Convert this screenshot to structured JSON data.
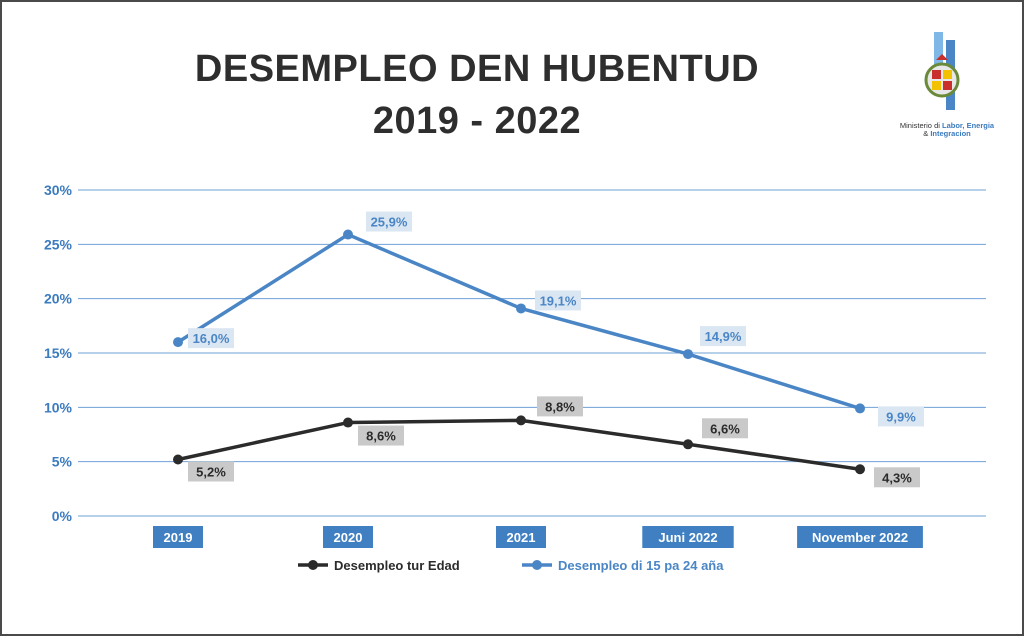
{
  "title_line1": "DESEMPLEO DEN HUBENTUD",
  "title_line2": "2019 - 2022",
  "logo": {
    "caption_line1": "Ministerio di",
    "caption_highlight1": "Labor, Energia",
    "caption_line2": "&",
    "caption_highlight2": "Integracion"
  },
  "colors": {
    "blue": "#4a86c5",
    "black": "#2b2b2b",
    "grid": "#6fa0d6",
    "blue_label_bg": "#dbe6f3",
    "gray_label_bg": "#c9c9c9",
    "xtick_bg": "#3f7fc2"
  },
  "chart_data": {
    "type": "line",
    "title": "DESEMPLEO DEN HUBENTUD 2019 - 2022",
    "categories": [
      "2019",
      "2020",
      "2021",
      "Juni 2022",
      "November 2022"
    ],
    "y_ticks": [
      "0%",
      "5%",
      "10%",
      "15%",
      "20%",
      "25%",
      "30%"
    ],
    "ylim": [
      0,
      30
    ],
    "grid": true,
    "legend_position": "bottom",
    "series": [
      {
        "name": "Desempleo tur Edad",
        "values": [
          5.2,
          8.6,
          8.8,
          6.6,
          4.3
        ],
        "labels": [
          "5,2%",
          "8,6%",
          "8,8%",
          "6,6%",
          "4,3%"
        ],
        "color": "#2b2b2b"
      },
      {
        "name": "Desempleo di 15 pa 24 aña",
        "values": [
          16.0,
          25.9,
          19.1,
          14.9,
          9.9
        ],
        "labels": [
          "16,0%",
          "25,9%",
          "19,1%",
          "14,9%",
          "9,9%"
        ],
        "color": "#4a86c5"
      }
    ]
  }
}
